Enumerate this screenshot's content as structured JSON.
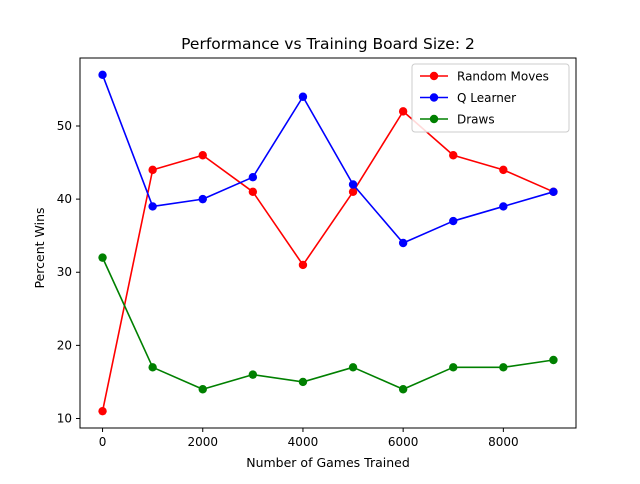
{
  "chart_data": {
    "type": "line",
    "title": "Performance vs Training Board Size: 2",
    "xlabel": "Number of Games Trained",
    "ylabel": "Percent Wins",
    "xlim": [
      -450,
      9450
    ],
    "ylim": [
      8.7,
      59.3
    ],
    "xticks": [
      0,
      2000,
      4000,
      6000,
      8000
    ],
    "yticks": [
      10,
      20,
      30,
      40,
      50
    ],
    "grid": false,
    "legend_position": "top-right",
    "x": [
      0,
      1000,
      2000,
      3000,
      4000,
      5000,
      6000,
      7000,
      8000,
      9000
    ],
    "series": [
      {
        "name": "Random Moves",
        "color": "#ff0000",
        "values": [
          11,
          44,
          46,
          41,
          31,
          41,
          52,
          46,
          44,
          41
        ]
      },
      {
        "name": "Q Learner",
        "color": "#0000ff",
        "values": [
          57,
          39,
          40,
          43,
          54,
          42,
          34,
          37,
          39,
          41
        ]
      },
      {
        "name": "Draws",
        "color": "#008000",
        "values": [
          32,
          17,
          14,
          16,
          15,
          17,
          14,
          17,
          17,
          18
        ]
      }
    ]
  }
}
